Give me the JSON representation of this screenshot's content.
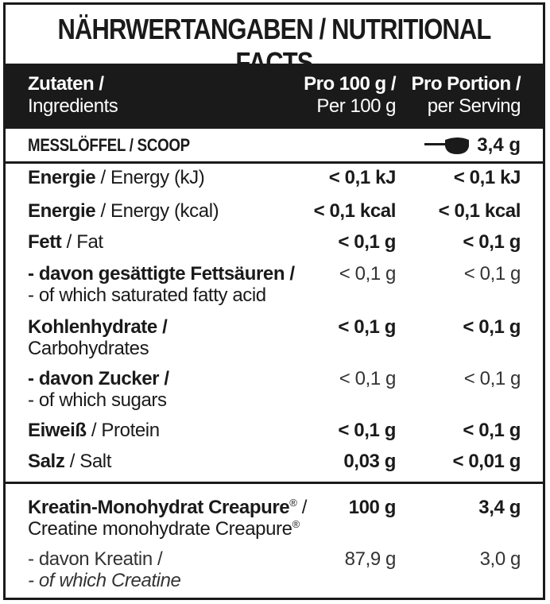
{
  "title": "NÄHRWERTANGABEN / NUTRITIONAL FACTS",
  "header": {
    "col_ingredients_de": "Zutaten /",
    "col_ingredients_en": "Ingredients",
    "col_100_de": "Pro 100 g /",
    "col_100_en": "Per 100 g",
    "col_portion_de": "Pro Portion /",
    "col_portion_en": "per Serving"
  },
  "scoop": {
    "label": "MESSLÖFFEL / SCOOP",
    "icon": "scoop-icon",
    "value": "3,4 g"
  },
  "rows": [
    {
      "de": "Energie",
      "en": " / Energy (kJ)",
      "per100": "< 0,1 kJ",
      "portion": "< 0,1 kJ"
    },
    {
      "de": "Energie",
      "en": " / Energy (kcal)",
      "per100": "< 0,1 kcal",
      "portion": "< 0,1 kcal"
    },
    {
      "de": "Fett",
      "en": " / Fat",
      "per100": "< 0,1 g",
      "portion": "< 0,1 g"
    },
    {
      "de": "- davon gesättigte Fettsäuren /",
      "en": "- of which saturated fatty acid",
      "per100": "< 0,1 g",
      "portion": "< 0,1 g"
    },
    {
      "de": "Kohlenhydrate /",
      "en": "Carbohydrates",
      "per100": "< 0,1 g",
      "portion": "< 0,1 g"
    },
    {
      "de": "- davon Zucker /",
      "en": "- of which sugars",
      "per100": "< 0,1 g",
      "portion": "< 0,1 g"
    },
    {
      "de": "Eiweiß",
      "en": " / Protein",
      "per100": "< 0,1 g",
      "portion": "< 0,1 g"
    },
    {
      "de": "Salz",
      "en": " / Salt",
      "per100": "0,03 g",
      "portion": "< 0,01 g"
    }
  ],
  "creatine": {
    "de": "Kreatin-Monohydrat Creapure",
    "de_reg": "®",
    "de_slash": " /",
    "en": "Creatine monohydrate Creapure",
    "en_reg": "®",
    "per100": "100 g",
    "portion": "3,4 g"
  },
  "creatine_sub": {
    "de": "- davon Kreatin /",
    "en": "- of which Creatine",
    "per100": "87,9 g",
    "portion": "3,0 g"
  }
}
